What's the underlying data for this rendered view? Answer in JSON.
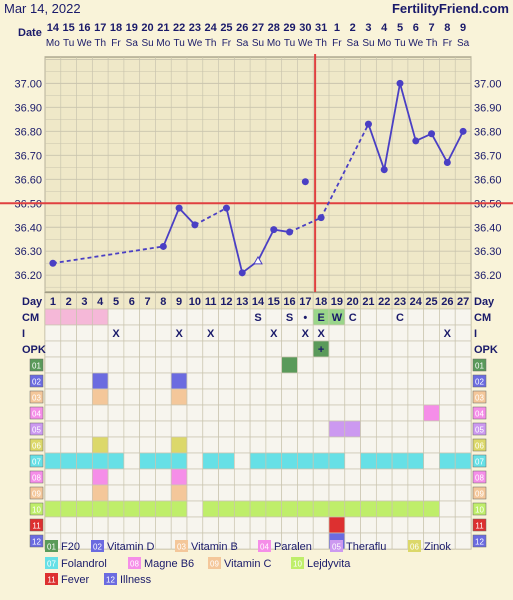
{
  "header": {
    "date": "Mar 14, 2022",
    "brand": "FertilityFriend.com",
    "date_row_label": "Date"
  },
  "chart_data": {
    "type": "line",
    "dates": [
      "14",
      "15",
      "16",
      "17",
      "18",
      "19",
      "20",
      "21",
      "22",
      "23",
      "24",
      "25",
      "26",
      "27",
      "28",
      "29",
      "30",
      "31",
      "1",
      "2",
      "3",
      "4",
      "5",
      "6",
      "7",
      "8",
      "9"
    ],
    "weekdays": [
      "Mo",
      "Tu",
      "We",
      "Th",
      "Fr",
      "Sa",
      "Su",
      "Mo",
      "Tu",
      "We",
      "Th",
      "Fr",
      "Sa",
      "Su",
      "Mo",
      "Tu",
      "We",
      "Th",
      "Fr",
      "Sa",
      "Su",
      "Mo",
      "Tu",
      "We",
      "Th",
      "Fr",
      "Sa"
    ],
    "days": [
      "1",
      "2",
      "3",
      "4",
      "5",
      "6",
      "7",
      "8",
      "9",
      "10",
      "11",
      "12",
      "13",
      "14",
      "15",
      "16",
      "17",
      "18",
      "19",
      "20",
      "21",
      "22",
      "23",
      "24",
      "25",
      "26",
      "27"
    ],
    "ylim": [
      36.13,
      37.11
    ],
    "yticks": [
      "36.20",
      "36.30",
      "36.40",
      "36.50",
      "36.60",
      "36.70",
      "36.80",
      "36.90",
      "37.00"
    ],
    "temps": [
      36.25,
      null,
      null,
      null,
      null,
      null,
      null,
      36.32,
      36.48,
      36.41,
      null,
      36.48,
      36.21,
      36.26,
      36.39,
      36.38,
      36.59,
      36.44,
      null,
      null,
      36.83,
      36.64,
      37.0,
      36.76,
      36.79,
      36.67,
      36.8
    ],
    "open_points": [
      14
    ],
    "discarded_points": [
      17
    ],
    "coverline": 36.5,
    "ovulation_day": 18
  },
  "rows": {
    "day_label": "Day",
    "cm_label": "CM",
    "i_label": "I",
    "opk_label": "OPK",
    "cm": [
      "",
      "",
      "",
      "",
      "",
      "",
      "",
      "",
      "",
      "",
      "",
      "",
      "",
      "S",
      "",
      "S",
      "•",
      "E",
      "W",
      "C",
      "",
      "",
      "C",
      "",
      "",
      "",
      ""
    ],
    "cm_pink": [
      1,
      2,
      3,
      4
    ],
    "cm_green": [
      18,
      19
    ],
    "intercourse": [
      "",
      "",
      "",
      "",
      "X",
      "",
      "",
      "",
      "X",
      "",
      "X",
      "",
      "",
      "",
      "X",
      "",
      "X",
      "X",
      "",
      "",
      "",
      "",
      "",
      "",
      "",
      "X",
      ""
    ],
    "opk": [
      "",
      "",
      "",
      "",
      "",
      "",
      "",
      "",
      "",
      "",
      "",
      "",
      "",
      "",
      "",
      "",
      "",
      "+",
      "",
      "",
      "",
      "",
      "",
      "",
      "",
      "",
      ""
    ]
  },
  "meds": [
    {
      "code": "01",
      "name": "F20",
      "color": "#5a9a5a",
      "days": [
        16
      ]
    },
    {
      "code": "02",
      "name": "Vitamin D",
      "color": "#6b6be0",
      "days": [
        4,
        9
      ]
    },
    {
      "code": "03",
      "name": "Vitamin B",
      "color": "#f4c79a",
      "days": [
        4,
        9
      ]
    },
    {
      "code": "04",
      "name": "Paralen",
      "color": "#f58ee8",
      "days": [
        25
      ]
    },
    {
      "code": "05",
      "name": "Theraflu",
      "color": "#cc99f0",
      "days": [
        19,
        20
      ]
    },
    {
      "code": "06",
      "name": "Zinok",
      "color": "#dcd86a",
      "days": [
        4,
        9
      ]
    },
    {
      "code": "07",
      "name": "Folandrol",
      "color": "#66e0e6",
      "days": [
        1,
        2,
        3,
        4,
        5,
        7,
        8,
        9,
        11,
        12,
        14,
        15,
        16,
        17,
        18,
        19,
        21,
        22,
        23,
        24,
        26,
        27
      ]
    },
    {
      "code": "08",
      "name": "Magne B6",
      "color": "#f58ee8",
      "days": [
        4,
        9
      ]
    },
    {
      "code": "09",
      "name": "Vitamin C",
      "color": "#f4c79a",
      "days": [
        4,
        9
      ]
    },
    {
      "code": "10",
      "name": "Lejdyvita",
      "color": "#bfee6a",
      "days": [
        1,
        2,
        3,
        4,
        5,
        6,
        7,
        8,
        9,
        11,
        12,
        13,
        14,
        15,
        16,
        17,
        18,
        19,
        20,
        21,
        22,
        23,
        24,
        25
      ]
    },
    {
      "code": "11",
      "name": "Fever",
      "color": "#dd3030",
      "days": [
        19
      ]
    },
    {
      "code": "12",
      "name": "Illness",
      "color": "#6b6be0",
      "days": [
        19
      ]
    }
  ],
  "colors": {
    "pink": "#f5b8d8",
    "green": "#9ad68a",
    "line": "#4a3fc4",
    "cover": "#e04040",
    "grid": "#c9c4ae",
    "cell": "#f7f5ee",
    "ink": "#1a1a6a"
  }
}
